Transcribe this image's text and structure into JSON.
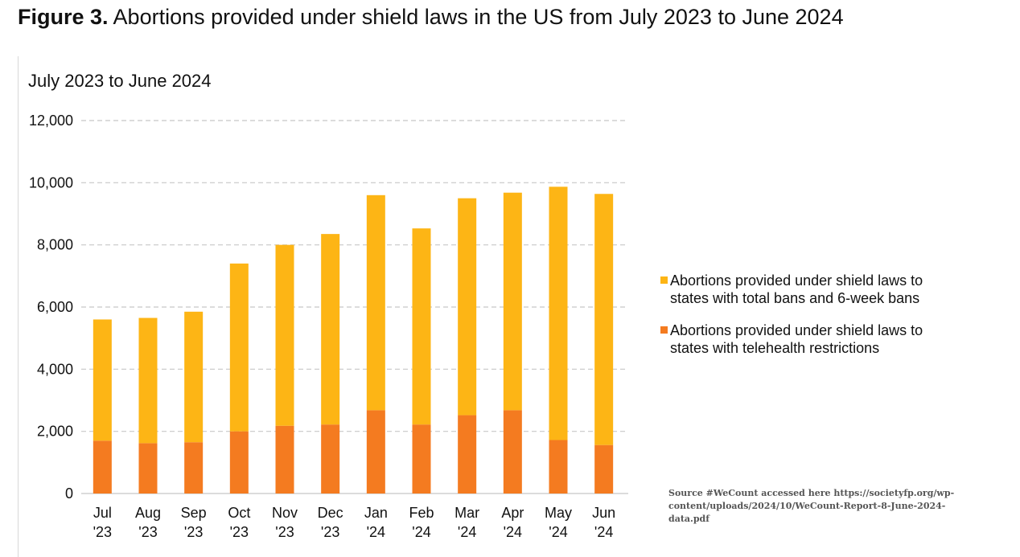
{
  "title": {
    "label": "Figure 3.",
    "text": "Abortions provided under shield laws in the US from July 2023 to June 2024"
  },
  "source_note": "Source #WeCount accessed here https://societyfp.org/wp-content/uploads/2024/10/WeCount-Report-8-June-2024-data.pdf",
  "colors": {
    "total_bans": "#FDB515",
    "telehealth": "#F47B20"
  },
  "chart_data": {
    "type": "bar",
    "stacked": true,
    "title": "July 2023 to June 2024",
    "xlabel": "",
    "ylabel": "",
    "ylim": [
      0,
      12000
    ],
    "yticks": [
      0,
      2000,
      4000,
      6000,
      8000,
      10000,
      12000
    ],
    "ytick_labels": [
      "0",
      "2,000",
      "4,000",
      "6,000",
      "8,000",
      "10,000",
      "12,000"
    ],
    "grid": true,
    "legend_position": "right",
    "categories": [
      [
        "Jul",
        "'23"
      ],
      [
        "Aug",
        "'23"
      ],
      [
        "Sep",
        "'23"
      ],
      [
        "Oct",
        "'23"
      ],
      [
        "Nov",
        "'23"
      ],
      [
        "Dec",
        "'23"
      ],
      [
        "Jan",
        "'24"
      ],
      [
        "Feb",
        "'24"
      ],
      [
        "Mar",
        "'24"
      ],
      [
        "Apr",
        "'24"
      ],
      [
        "May",
        "'24"
      ],
      [
        "Jun",
        "'24"
      ]
    ],
    "series": [
      {
        "name": "Abortions provided under shield laws to states with telehealth restrictions",
        "legend_lines": [
          "Abortions provided under shield laws to",
          "states with telehealth restrictions"
        ],
        "color": "#F47B20",
        "values": [
          1700,
          1620,
          1650,
          2000,
          2180,
          2220,
          2680,
          2220,
          2520,
          2680,
          1720,
          1560
        ]
      },
      {
        "name": "Abortions provided under shield laws to states with total bans and 6-week bans",
        "legend_lines": [
          "Abortions provided under shield laws to",
          "states with total bans and 6-week bans"
        ],
        "color": "#FDB515",
        "values": [
          3900,
          4030,
          4200,
          5400,
          5820,
          6130,
          6920,
          6310,
          6980,
          7000,
          8150,
          8080
        ]
      }
    ]
  }
}
